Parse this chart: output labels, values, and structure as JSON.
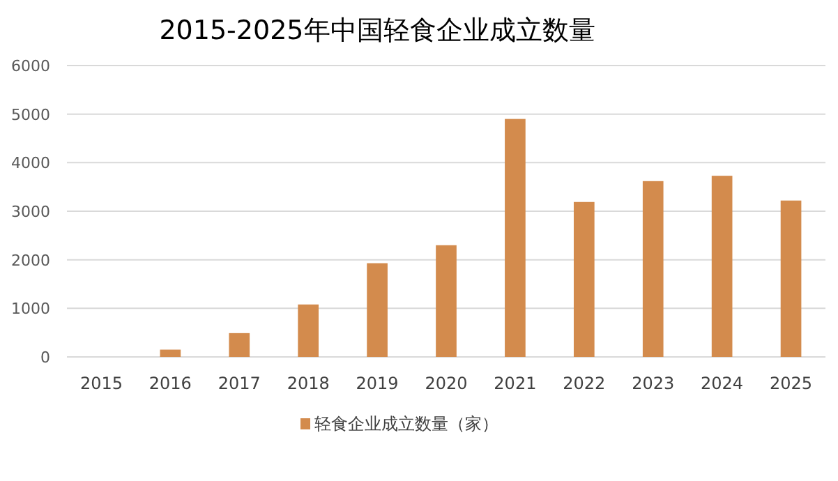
{
  "chart_data": {
    "type": "bar",
    "title": "2015-2025年中国轻食企业成立数量",
    "categories": [
      "2015",
      "2016",
      "2017",
      "2018",
      "2019",
      "2020",
      "2021",
      "2022",
      "2023",
      "2024",
      "2025"
    ],
    "series": [
      {
        "name": "轻食企业成立数量（家）",
        "color": "#d38b4d",
        "values": [
          0,
          150,
          490,
          1080,
          1930,
          2300,
          4900,
          3190,
          3620,
          3730,
          3220
        ]
      }
    ],
    "ylim": [
      0,
      6000
    ],
    "yticks": [
      0,
      1000,
      2000,
      3000,
      4000,
      5000,
      6000
    ],
    "grid": "y",
    "legend": "bottom"
  }
}
